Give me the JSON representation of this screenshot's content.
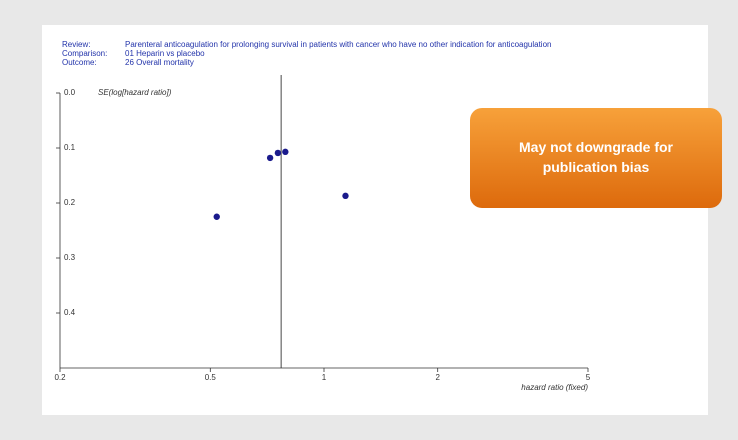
{
  "chart_data": {
    "type": "scatter",
    "header": [
      {
        "label": "Review:",
        "text": "Parenteral anticoagulation for prolonging survival in patients with cancer who have no other indication for anticoagulation"
      },
      {
        "label": "Comparison:",
        "text": "01 Heparin vs placebo"
      },
      {
        "label": "Outcome:",
        "text": "26 Overall mortality"
      }
    ],
    "ylabel": "SE(log[hazard ratio])",
    "xlabel": "hazard ratio (fixed)",
    "annotation": "May not downgrade for publication bias",
    "series": [
      {
        "color": "#1a1a8c",
        "x": [
          0.72,
          0.755,
          0.79,
          0.52,
          1.14
        ],
        "values": [
          0.118,
          0.109,
          0.107,
          0.225,
          0.187
        ]
      }
    ],
    "reference_line_x": 0.77,
    "xscale": "log",
    "xlim": [
      0.2,
      5
    ],
    "xticks": [
      0.2,
      0.5,
      1,
      2,
      5
    ],
    "ylim": [
      0,
      0.5
    ],
    "yinverted": true,
    "yticks": [
      {
        "value": 0,
        "label": "0.0"
      },
      0.1,
      0.2,
      0.3,
      0.4
    ]
  }
}
